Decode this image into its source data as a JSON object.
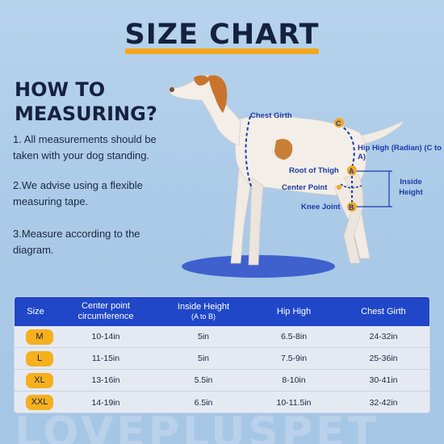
{
  "header": {
    "title": "SIZE CHART"
  },
  "howto": {
    "heading": "HOW TO MEASURING?",
    "steps": [
      "1. All measurements should be taken with your dog standing.",
      "2.We advise using a flexible measuring tape.",
      "3.Measure according to the diagram."
    ]
  },
  "diagram": {
    "labels": {
      "chest": "Chest Girth",
      "c_point": "C",
      "hip": "Hip High (Radian) (C to A)",
      "thigh": "Root of Thigh",
      "a_point": "A",
      "center": "Center Point",
      "knee": "Knee Joint",
      "b_point": "B",
      "inside": "Inside Height"
    }
  },
  "table": {
    "headers": [
      {
        "label": "Size",
        "sub": ""
      },
      {
        "label": "Center point circumference",
        "sub": ""
      },
      {
        "label": "Inside Height",
        "sub": "(A to B)"
      },
      {
        "label": "Hip High",
        "sub": ""
      },
      {
        "label": "Chest Girth",
        "sub": ""
      }
    ],
    "rows": [
      {
        "size": "M",
        "center": "10-14in",
        "inside": "5in",
        "hip": "6.5-8in",
        "chest": "24-32in"
      },
      {
        "size": "L",
        "center": "11-15in",
        "inside": "5in",
        "hip": "7.5-9in",
        "chest": "25-36in"
      },
      {
        "size": "XL",
        "center": "13-16in",
        "inside": "5.5in",
        "hip": "8-10in",
        "chest": "30-41in"
      },
      {
        "size": "XXL",
        "center": "14-19in",
        "inside": "6.5in",
        "hip": "10-11.5in",
        "chest": "32-42in"
      }
    ]
  },
  "watermark": {
    "text": "LOVEPLUSPET"
  },
  "colors": {
    "accent": "#f4a81d",
    "header_blue": "#1f47c8",
    "diagram_blue": "#1d3aa6",
    "background": "#b2cfea"
  }
}
